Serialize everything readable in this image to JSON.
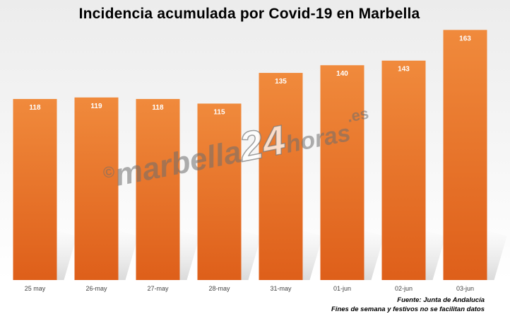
{
  "chart_data": {
    "type": "bar",
    "title": "Incidencia acumulada por Covid-19 en Marbella",
    "categories": [
      "25 may",
      "26-may",
      "27-may",
      "28-may",
      "31-may",
      "01-jun",
      "02-jun",
      "03-jun"
    ],
    "values": [
      118,
      119,
      118,
      115,
      135,
      140,
      143,
      163
    ],
    "xlabel": "",
    "ylabel": "",
    "ylim": [
      0,
      165
    ],
    "grid": false,
    "legend": "none",
    "data_labels": true,
    "bar_color": "#e8732a"
  },
  "watermark": {
    "copyright": "©",
    "part1": "marbella",
    "part2": "24",
    "part3": "horas",
    "part4": ".es"
  },
  "footer": {
    "source": "Fuente: Junta de Andalucía",
    "note": "Fines de semana y festivos no se facilitan datos"
  },
  "colors": {
    "bar_top": "#f08a3c",
    "bar_bottom": "#e0601a",
    "background_top": "#ececec",
    "background_bottom": "#ffffff"
  }
}
